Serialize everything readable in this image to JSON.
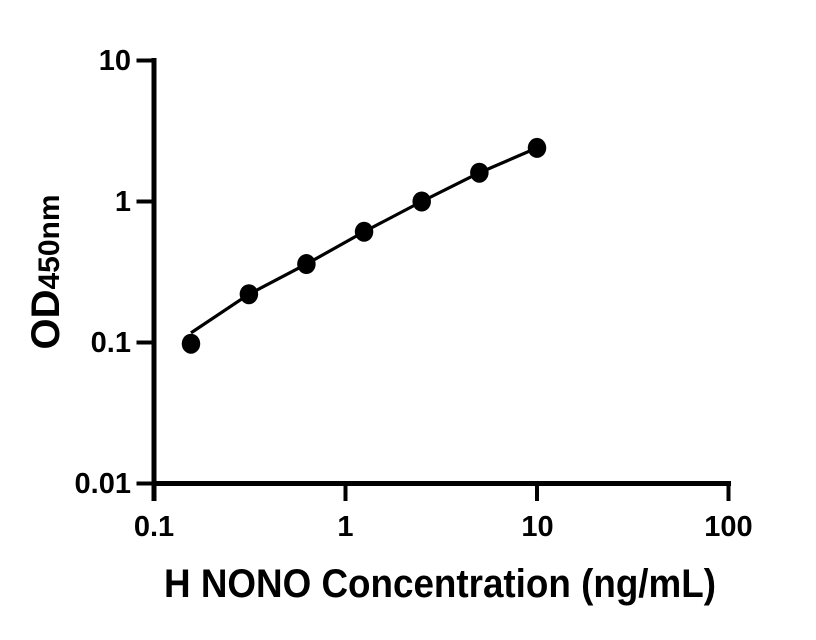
{
  "colors": {
    "background": "#ffffff",
    "axis": "#000000",
    "text": "#000000",
    "marker": "#000000",
    "line": "#000000"
  },
  "chart_data": {
    "type": "scatter",
    "title": "",
    "xlabel": "H NONO Concentration (ng/mL)",
    "ylabel": "OD450nm",
    "ylabel_parts": {
      "main": "OD",
      "sub": "450nm"
    },
    "x_scale": "log",
    "y_scale": "log",
    "xlim": [
      0.1,
      100
    ],
    "ylim": [
      0.01,
      10
    ],
    "x_ticks": [
      "0.1",
      "1",
      "10",
      "100"
    ],
    "y_ticks": [
      "10",
      "1",
      "0.1",
      "0.01"
    ],
    "grid": false,
    "legend": false,
    "marker_style": "filled-circle",
    "points": {
      "x": [
        0.156,
        0.313,
        0.625,
        1.25,
        2.5,
        5,
        10
      ],
      "y": [
        0.098,
        0.22,
        0.36,
        0.61,
        1.0,
        1.6,
        2.4
      ]
    },
    "fit_line": {
      "x": [
        0.156,
        0.313,
        0.625,
        1.25,
        2.5,
        5,
        10
      ],
      "y": [
        0.117,
        0.22,
        0.36,
        0.61,
        1.0,
        1.6,
        2.4
      ]
    }
  }
}
